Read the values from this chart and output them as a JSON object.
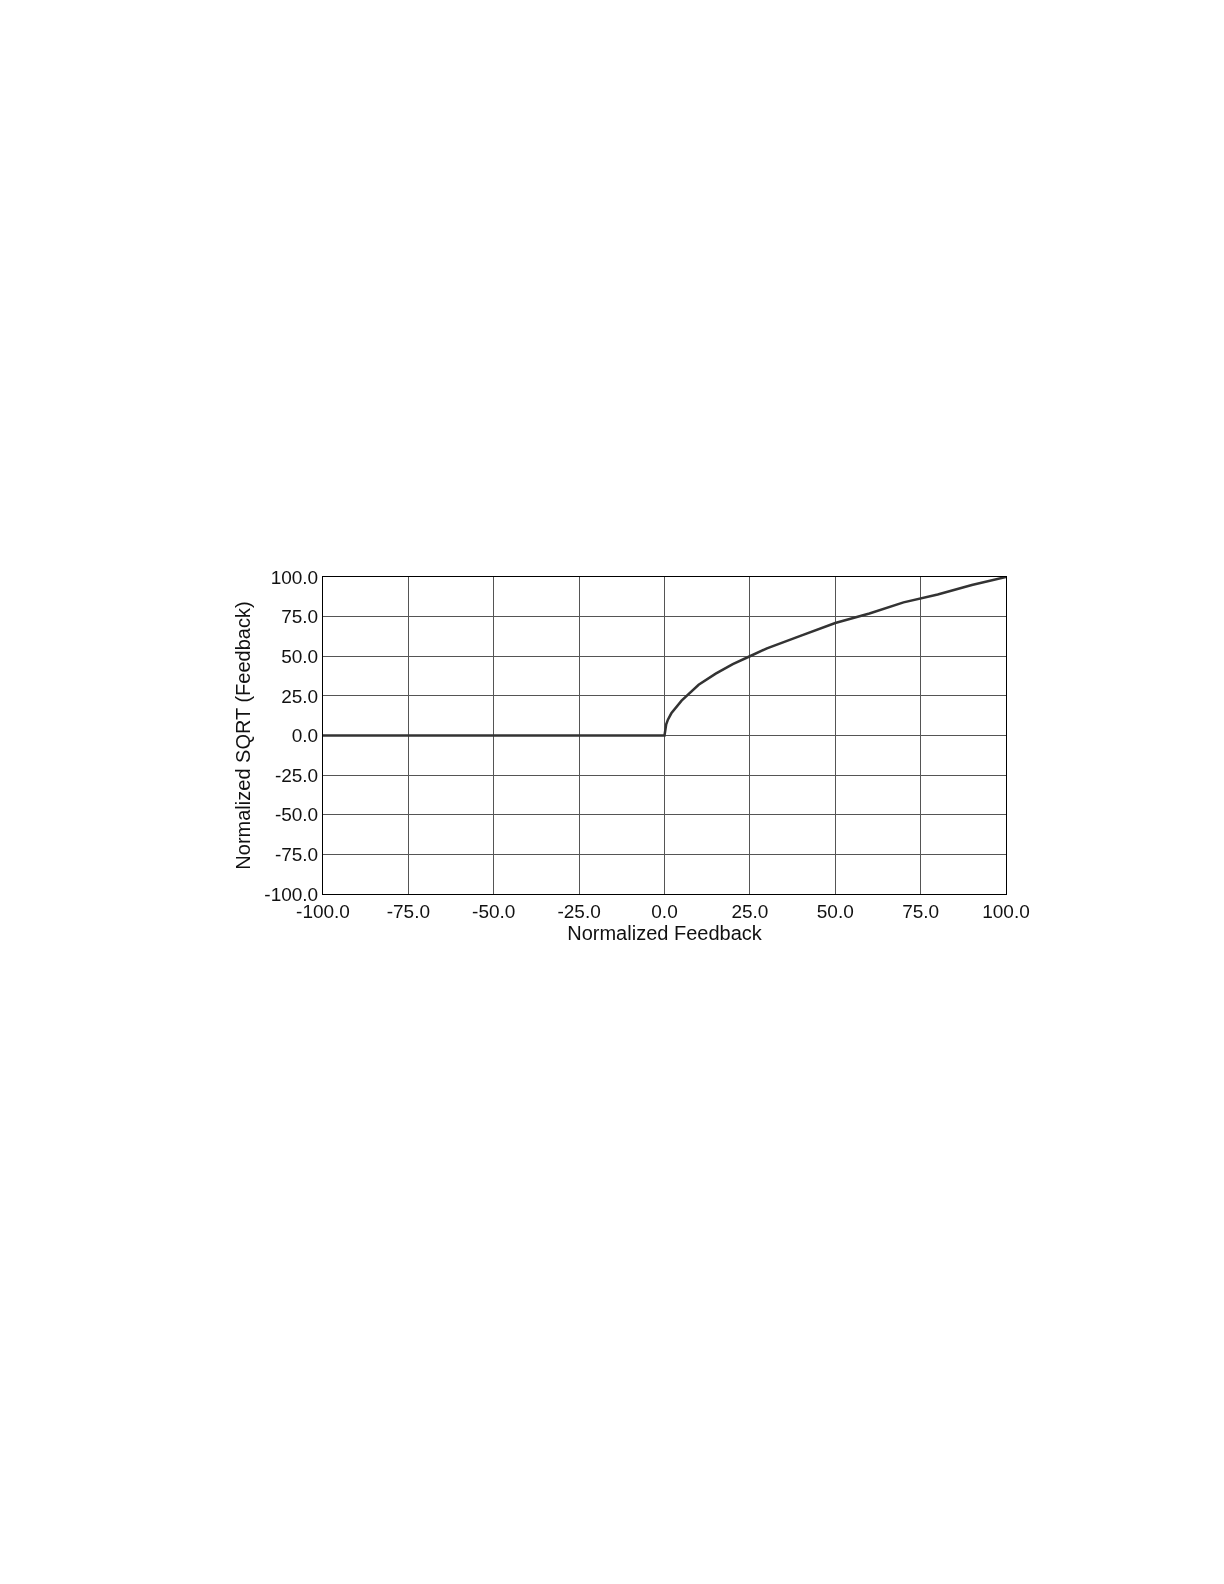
{
  "chart_data": {
    "type": "line",
    "xlabel": "Normalized Feedback",
    "ylabel": "Normalized SQRT (Feedback)",
    "x": [
      -100,
      -50,
      0,
      0.5,
      1,
      2,
      5,
      10,
      15,
      20,
      25,
      30,
      40,
      50,
      60,
      70,
      80,
      90,
      100
    ],
    "series": [
      {
        "color": "#333333",
        "values": [
          0,
          0,
          0,
          7,
          10,
          14,
          22,
          32,
          39,
          45,
          50,
          55,
          63,
          71,
          77,
          84,
          89,
          95,
          100
        ]
      }
    ],
    "xlim": [
      -100,
      100
    ],
    "ylim": [
      -100,
      100
    ],
    "xticks": [
      {
        "value": -100,
        "label": "-100.0"
      },
      {
        "value": -75,
        "label": "-75.0"
      },
      {
        "value": -50,
        "label": "-50.0"
      },
      {
        "value": -25,
        "label": "-25.0"
      },
      {
        "value": 0,
        "label": "0.0"
      },
      {
        "value": 25,
        "label": "25.0"
      },
      {
        "value": 50,
        "label": "50.0"
      },
      {
        "value": 75,
        "label": "75.0"
      },
      {
        "value": 100,
        "label": "100.0"
      }
    ],
    "yticks": [
      {
        "value": -100,
        "label": "-100.0"
      },
      {
        "value": -75,
        "label": "-75.0"
      },
      {
        "value": -50,
        "label": "-50.0"
      },
      {
        "value": -25,
        "label": "-25.0"
      },
      {
        "value": 0,
        "label": "0.0"
      },
      {
        "value": 25,
        "label": "25.0"
      },
      {
        "value": 50,
        "label": "50.0"
      },
      {
        "value": 75,
        "label": "75.0"
      },
      {
        "value": 100,
        "label": "100.0"
      }
    ],
    "grid": true,
    "legend": false,
    "marker": "none",
    "line_style": "solid"
  }
}
